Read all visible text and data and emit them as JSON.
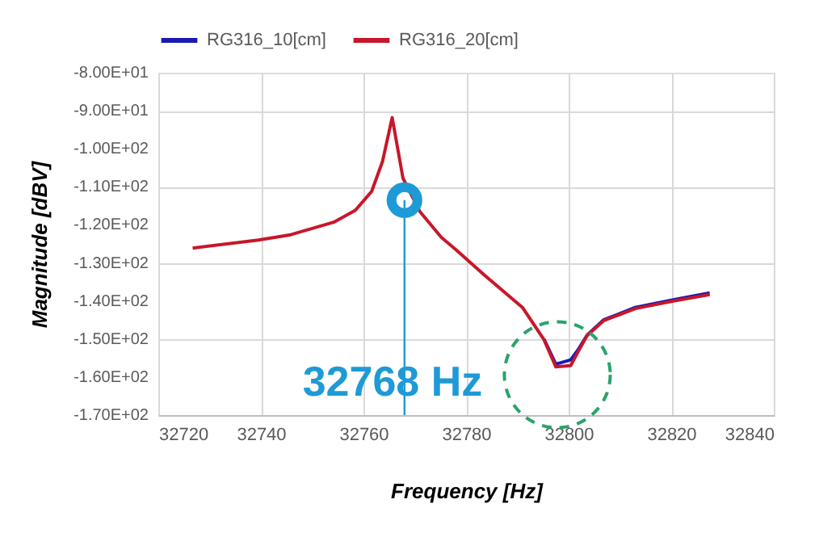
{
  "chart_data": {
    "type": "line",
    "xlabel": "Frequency [Hz]",
    "ylabel": "Magnitude [dBV]",
    "x": [
      32726.7,
      32739.5,
      32745.8,
      32754.2,
      32758.4,
      32761.6,
      32763.7,
      32765.6,
      32767.7,
      32771.0,
      32775.2,
      32778.0,
      32783.6,
      32791.0,
      32795.2,
      32797.5,
      32800.4,
      32802.0,
      32803.6,
      32806.8,
      32813.0,
      32820.4,
      32827.5
    ],
    "series": [
      {
        "name": "RG316_10[cm]",
        "color": "#1a1ab4",
        "values": [
          null,
          null,
          null,
          null,
          null,
          null,
          null,
          null,
          null,
          null,
          null,
          null,
          null,
          null,
          -150.0,
          -156.6,
          -155.5,
          -152.5,
          -149.0,
          -145.0,
          -141.7,
          -139.7,
          -137.9
        ]
      },
      {
        "name": "RG316_20[cm]",
        "color": "#c8172a",
        "values": [
          -126.1,
          -124.0,
          -122.6,
          -119.3,
          -116.2,
          -111.2,
          -103.4,
          -91.8,
          -107.7,
          -116.5,
          -123.3,
          -126.5,
          -133.2,
          -141.7,
          -150.2,
          -157.3,
          -157.0,
          -153.0,
          -149.1,
          -145.2,
          -142.0,
          -140.0,
          -138.3
        ]
      },
      {
        "type": "scatter",
        "color": "#1e9ad6",
        "marker": "circle",
        "x": [
          32768
        ],
        "values": [
          -113.5
        ]
      }
    ],
    "xlim": [
      32720,
      32840
    ],
    "xticks": [
      32720,
      32740,
      32760,
      32780,
      32800,
      32820,
      32840
    ],
    "ylim": [
      -170,
      -80
    ],
    "yticks": [
      {
        "value": -170,
        "label": "-1.70E+02"
      },
      {
        "value": -160,
        "label": "-1.60E+02"
      },
      {
        "value": -150,
        "label": "-1.50E+02"
      },
      {
        "value": -140,
        "label": "-1.40E+02"
      },
      {
        "value": -130,
        "label": "-1.30E+02"
      },
      {
        "value": -120,
        "label": "-1.20E+02"
      },
      {
        "value": -110,
        "label": "-1.10E+02"
      },
      {
        "value": -100,
        "label": "-1.00E+02"
      },
      {
        "value": -90,
        "label": "-9.00E+01"
      },
      {
        "value": -80,
        "label": "-8.00E+01"
      }
    ],
    "ref_lines": [
      {
        "axis": "x",
        "value": 32768,
        "color": "#1e9ad6"
      }
    ],
    "annotations": [
      "32768 Hz"
    ],
    "grid": true,
    "legend": "top",
    "line_style": "solid"
  }
}
